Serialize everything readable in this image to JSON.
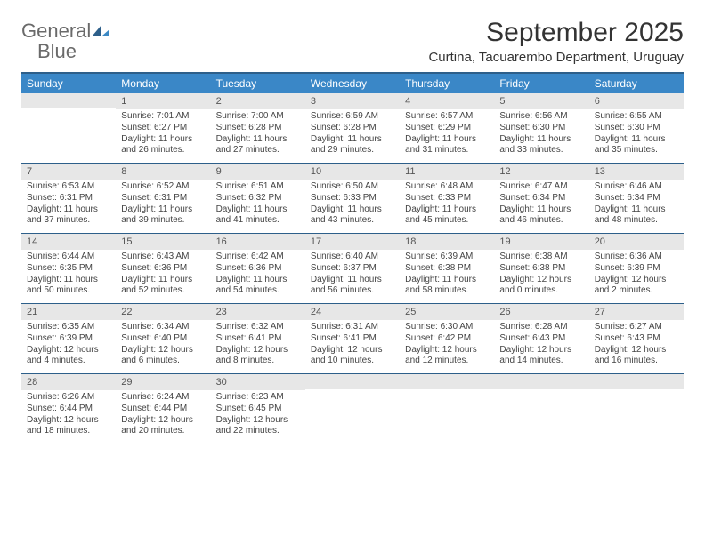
{
  "brand": {
    "name_gray": "General",
    "name_blue": "Blue"
  },
  "title": "September 2025",
  "location": "Curtina, Tacuarembo Department, Uruguay",
  "colors": {
    "header_bar": "#3a87c7",
    "rule": "#2d5f8a",
    "daynum_bg": "#e7e7e7",
    "text": "#333333",
    "logo_gray": "#6a6a6a",
    "logo_blue": "#3b88c4"
  },
  "dow": [
    "Sunday",
    "Monday",
    "Tuesday",
    "Wednesday",
    "Thursday",
    "Friday",
    "Saturday"
  ],
  "weeks": [
    [
      {
        "n": "",
        "sr": "",
        "ss": "",
        "dl": ""
      },
      {
        "n": "1",
        "sr": "7:01 AM",
        "ss": "6:27 PM",
        "dl": "11 hours and 26 minutes."
      },
      {
        "n": "2",
        "sr": "7:00 AM",
        "ss": "6:28 PM",
        "dl": "11 hours and 27 minutes."
      },
      {
        "n": "3",
        "sr": "6:59 AM",
        "ss": "6:28 PM",
        "dl": "11 hours and 29 minutes."
      },
      {
        "n": "4",
        "sr": "6:57 AM",
        "ss": "6:29 PM",
        "dl": "11 hours and 31 minutes."
      },
      {
        "n": "5",
        "sr": "6:56 AM",
        "ss": "6:30 PM",
        "dl": "11 hours and 33 minutes."
      },
      {
        "n": "6",
        "sr": "6:55 AM",
        "ss": "6:30 PM",
        "dl": "11 hours and 35 minutes."
      }
    ],
    [
      {
        "n": "7",
        "sr": "6:53 AM",
        "ss": "6:31 PM",
        "dl": "11 hours and 37 minutes."
      },
      {
        "n": "8",
        "sr": "6:52 AM",
        "ss": "6:31 PM",
        "dl": "11 hours and 39 minutes."
      },
      {
        "n": "9",
        "sr": "6:51 AM",
        "ss": "6:32 PM",
        "dl": "11 hours and 41 minutes."
      },
      {
        "n": "10",
        "sr": "6:50 AM",
        "ss": "6:33 PM",
        "dl": "11 hours and 43 minutes."
      },
      {
        "n": "11",
        "sr": "6:48 AM",
        "ss": "6:33 PM",
        "dl": "11 hours and 45 minutes."
      },
      {
        "n": "12",
        "sr": "6:47 AM",
        "ss": "6:34 PM",
        "dl": "11 hours and 46 minutes."
      },
      {
        "n": "13",
        "sr": "6:46 AM",
        "ss": "6:34 PM",
        "dl": "11 hours and 48 minutes."
      }
    ],
    [
      {
        "n": "14",
        "sr": "6:44 AM",
        "ss": "6:35 PM",
        "dl": "11 hours and 50 minutes."
      },
      {
        "n": "15",
        "sr": "6:43 AM",
        "ss": "6:36 PM",
        "dl": "11 hours and 52 minutes."
      },
      {
        "n": "16",
        "sr": "6:42 AM",
        "ss": "6:36 PM",
        "dl": "11 hours and 54 minutes."
      },
      {
        "n": "17",
        "sr": "6:40 AM",
        "ss": "6:37 PM",
        "dl": "11 hours and 56 minutes."
      },
      {
        "n": "18",
        "sr": "6:39 AM",
        "ss": "6:38 PM",
        "dl": "11 hours and 58 minutes."
      },
      {
        "n": "19",
        "sr": "6:38 AM",
        "ss": "6:38 PM",
        "dl": "12 hours and 0 minutes."
      },
      {
        "n": "20",
        "sr": "6:36 AM",
        "ss": "6:39 PM",
        "dl": "12 hours and 2 minutes."
      }
    ],
    [
      {
        "n": "21",
        "sr": "6:35 AM",
        "ss": "6:39 PM",
        "dl": "12 hours and 4 minutes."
      },
      {
        "n": "22",
        "sr": "6:34 AM",
        "ss": "6:40 PM",
        "dl": "12 hours and 6 minutes."
      },
      {
        "n": "23",
        "sr": "6:32 AM",
        "ss": "6:41 PM",
        "dl": "12 hours and 8 minutes."
      },
      {
        "n": "24",
        "sr": "6:31 AM",
        "ss": "6:41 PM",
        "dl": "12 hours and 10 minutes."
      },
      {
        "n": "25",
        "sr": "6:30 AM",
        "ss": "6:42 PM",
        "dl": "12 hours and 12 minutes."
      },
      {
        "n": "26",
        "sr": "6:28 AM",
        "ss": "6:43 PM",
        "dl": "12 hours and 14 minutes."
      },
      {
        "n": "27",
        "sr": "6:27 AM",
        "ss": "6:43 PM",
        "dl": "12 hours and 16 minutes."
      }
    ],
    [
      {
        "n": "28",
        "sr": "6:26 AM",
        "ss": "6:44 PM",
        "dl": "12 hours and 18 minutes."
      },
      {
        "n": "29",
        "sr": "6:24 AM",
        "ss": "6:44 PM",
        "dl": "12 hours and 20 minutes."
      },
      {
        "n": "30",
        "sr": "6:23 AM",
        "ss": "6:45 PM",
        "dl": "12 hours and 22 minutes."
      },
      {
        "n": "",
        "sr": "",
        "ss": "",
        "dl": ""
      },
      {
        "n": "",
        "sr": "",
        "ss": "",
        "dl": ""
      },
      {
        "n": "",
        "sr": "",
        "ss": "",
        "dl": ""
      },
      {
        "n": "",
        "sr": "",
        "ss": "",
        "dl": ""
      }
    ]
  ],
  "labels": {
    "sunrise": "Sunrise:",
    "sunset": "Sunset:",
    "daylight": "Daylight:"
  }
}
